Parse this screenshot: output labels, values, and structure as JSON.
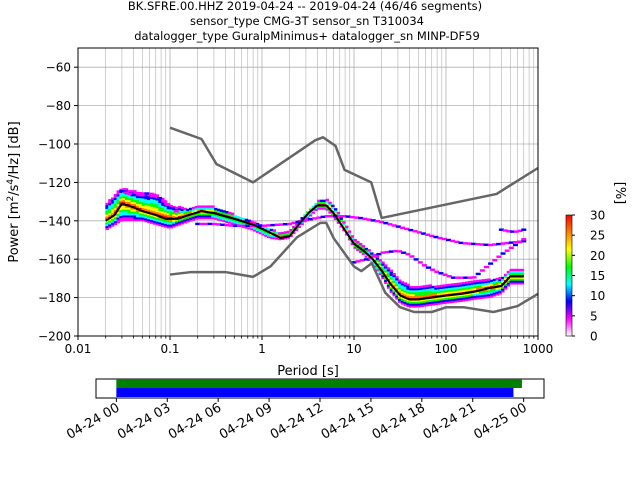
{
  "title_lines": [
    "BK.SFRE.00.HHZ   2019-04-24 -- 2019-04-24  (46/46 segments)",
    "sensor_type CMG-3T sensor_sn T310034",
    "datalogger_type GuralpMinimus+ datalogger_sn MINP-DF59"
  ],
  "chart_data": [
    {
      "type": "heatmap",
      "subtype": "ppsd",
      "xlabel": "Period [s]",
      "ylabel_parts": {
        "pre": "Power [m",
        "sup1": "2",
        "mid1": "/s",
        "sup2": "4",
        "post": "/Hz] [dB]"
      },
      "xscale": "log",
      "xlim": [
        0.01,
        1000
      ],
      "ylim": [
        -200,
        -50
      ],
      "x_ticks": [
        0.01,
        0.1,
        1,
        10,
        100,
        1000
      ],
      "x_tick_labels": [
        "0.01",
        "0.1",
        "1",
        "10",
        "100",
        "1000"
      ],
      "y_ticks": [
        -200,
        -180,
        -160,
        -140,
        -120,
        -100,
        -80,
        -60
      ],
      "y_tick_labels": [
        "−200",
        "−180",
        "−160",
        "−140",
        "−120",
        "−100",
        "−80",
        "−60"
      ],
      "grid": true,
      "noise_model_high": {
        "x": [
          0.1,
          0.22,
          0.32,
          0.8,
          3.8,
          4.6,
          6.3,
          7.9,
          15.4,
          20,
          354.8,
          1000
        ],
        "y": [
          -91.5,
          -97.4,
          -110.5,
          -120,
          -98,
          -96.5,
          -101,
          -113.5,
          -120,
          -138.5,
          -126,
          -112.5
        ]
      },
      "noise_model_low": {
        "x": [
          0.1,
          0.17,
          0.4,
          0.8,
          1.24,
          2.4,
          4.3,
          5,
          6,
          10,
          12,
          15.6,
          21.9,
          31.6,
          45,
          70,
          101,
          154,
          328,
          600,
          1000
        ],
        "y": [
          -168,
          -166.7,
          -166.7,
          -169.2,
          -163.7,
          -148.6,
          -141.1,
          -141.1,
          -149,
          -163.8,
          -166.2,
          -162.1,
          -177.5,
          -185,
          -187.5,
          -187.5,
          -185,
          -185,
          -187.5,
          -184.4,
          -178
        ]
      },
      "mode_curve": {
        "x": [
          0.02,
          0.025,
          0.03,
          0.04,
          0.05,
          0.07,
          0.09,
          0.12,
          0.16,
          0.22,
          0.3,
          0.5,
          0.8,
          1.2,
          1.6,
          2,
          2.5,
          3.2,
          4,
          5,
          6,
          8,
          10,
          13,
          16,
          20,
          25,
          32,
          40,
          50,
          70,
          100,
          150,
          200,
          300,
          400,
          500,
          700
        ],
        "y": [
          -140,
          -137,
          -131,
          -133,
          -135,
          -137,
          -139,
          -139,
          -137,
          -135,
          -136,
          -139,
          -142,
          -146,
          -149,
          -148,
          -142,
          -136,
          -132,
          -132,
          -136,
          -145,
          -152,
          -156,
          -160,
          -166,
          -173,
          -179,
          -181,
          -181,
          -180,
          -179,
          -178,
          -177,
          -175,
          -174,
          -169,
          -169
        ]
      },
      "spread": {
        "x": [
          0.02,
          0.03,
          0.05,
          0.07,
          0.1,
          0.15,
          0.2,
          0.3,
          0.5,
          0.8,
          1.2,
          1.6,
          2,
          3,
          4,
          5,
          6,
          8,
          10,
          13,
          16,
          20,
          25,
          32,
          40,
          50,
          70,
          100,
          150,
          200,
          300,
          400,
          500,
          700
        ],
        "upper": [
          -132,
          -123,
          -126,
          -126,
          -132,
          -134,
          -133,
          -133,
          -137,
          -141,
          -144,
          -147,
          -146,
          -137,
          -130,
          -129,
          -132,
          -142,
          -150,
          -154,
          -157,
          -161,
          -166,
          -171,
          -174,
          -175,
          -174,
          -174,
          -173,
          -172,
          -171,
          -170,
          -166,
          -166
        ],
        "lower": [
          -145,
          -140,
          -140,
          -142,
          -144,
          -141,
          -139,
          -139,
          -142,
          -145,
          -149,
          -150,
          -149,
          -140,
          -134,
          -134,
          -138,
          -146,
          -154,
          -158,
          -163,
          -169,
          -177,
          -183,
          -185,
          -185,
          -184,
          -183,
          -182,
          -181,
          -180,
          -178,
          -173,
          -173
        ]
      },
      "outlier_curves": [
        {
          "x": [
            0.2,
            0.3,
            0.5,
            1,
            2,
            3,
            5,
            8,
            12,
            20,
            40,
            80,
            150,
            300,
            700
          ],
          "y": [
            -142,
            -142,
            -143,
            -143,
            -142,
            -140,
            -138,
            -138,
            -139,
            -141,
            -145,
            -149,
            -152,
            -153,
            -151
          ]
        },
        {
          "x": [
            10,
            15,
            20,
            30,
            40,
            60,
            80,
            120,
            200,
            400,
            700
          ],
          "y": [
            -162,
            -160,
            -157,
            -156,
            -158,
            -164,
            -167,
            -170,
            -170,
            -158,
            -150
          ]
        },
        {
          "x": [
            400,
            500,
            600,
            700
          ],
          "y": [
            -145,
            -146,
            -146,
            -145
          ]
        },
        {
          "x": [
            0.03,
            0.04,
            0.06,
            0.08,
            0.1,
            0.13
          ],
          "y": [
            -125,
            -127,
            -126,
            -129,
            -133,
            -137
          ]
        }
      ],
      "colorbar": {
        "label": "[%]",
        "range": [
          0,
          30
        ],
        "ticks": [
          0,
          5,
          10,
          15,
          20,
          25,
          30
        ],
        "tick_labels": [
          "0",
          "5",
          "10",
          "15",
          "20",
          "25",
          "30"
        ],
        "colors": [
          "#ffffff",
          "#ff00ff",
          "#0000ff",
          "#00ffff",
          "#00ff00",
          "#ffff00",
          "#ff7f00",
          "#ff0000"
        ]
      }
    },
    {
      "type": "timeline",
      "tick_labels": [
        "04-24 00",
        "04-24 03",
        "04-24 06",
        "04-24 09",
        "04-24 12",
        "04-24 15",
        "04-24 18",
        "04-24 21",
        "04-25 00"
      ],
      "tick_hours": [
        0,
        3,
        6,
        9,
        12,
        15,
        18,
        21,
        24
      ],
      "xlim_hours": [
        -1.2,
        25.2
      ],
      "bars": [
        {
          "color": "#008000",
          "start_hour": 0,
          "end_hour": 23.9
        },
        {
          "color": "#0000ff",
          "start_hour": 0,
          "end_hour": 23.4
        }
      ]
    }
  ]
}
